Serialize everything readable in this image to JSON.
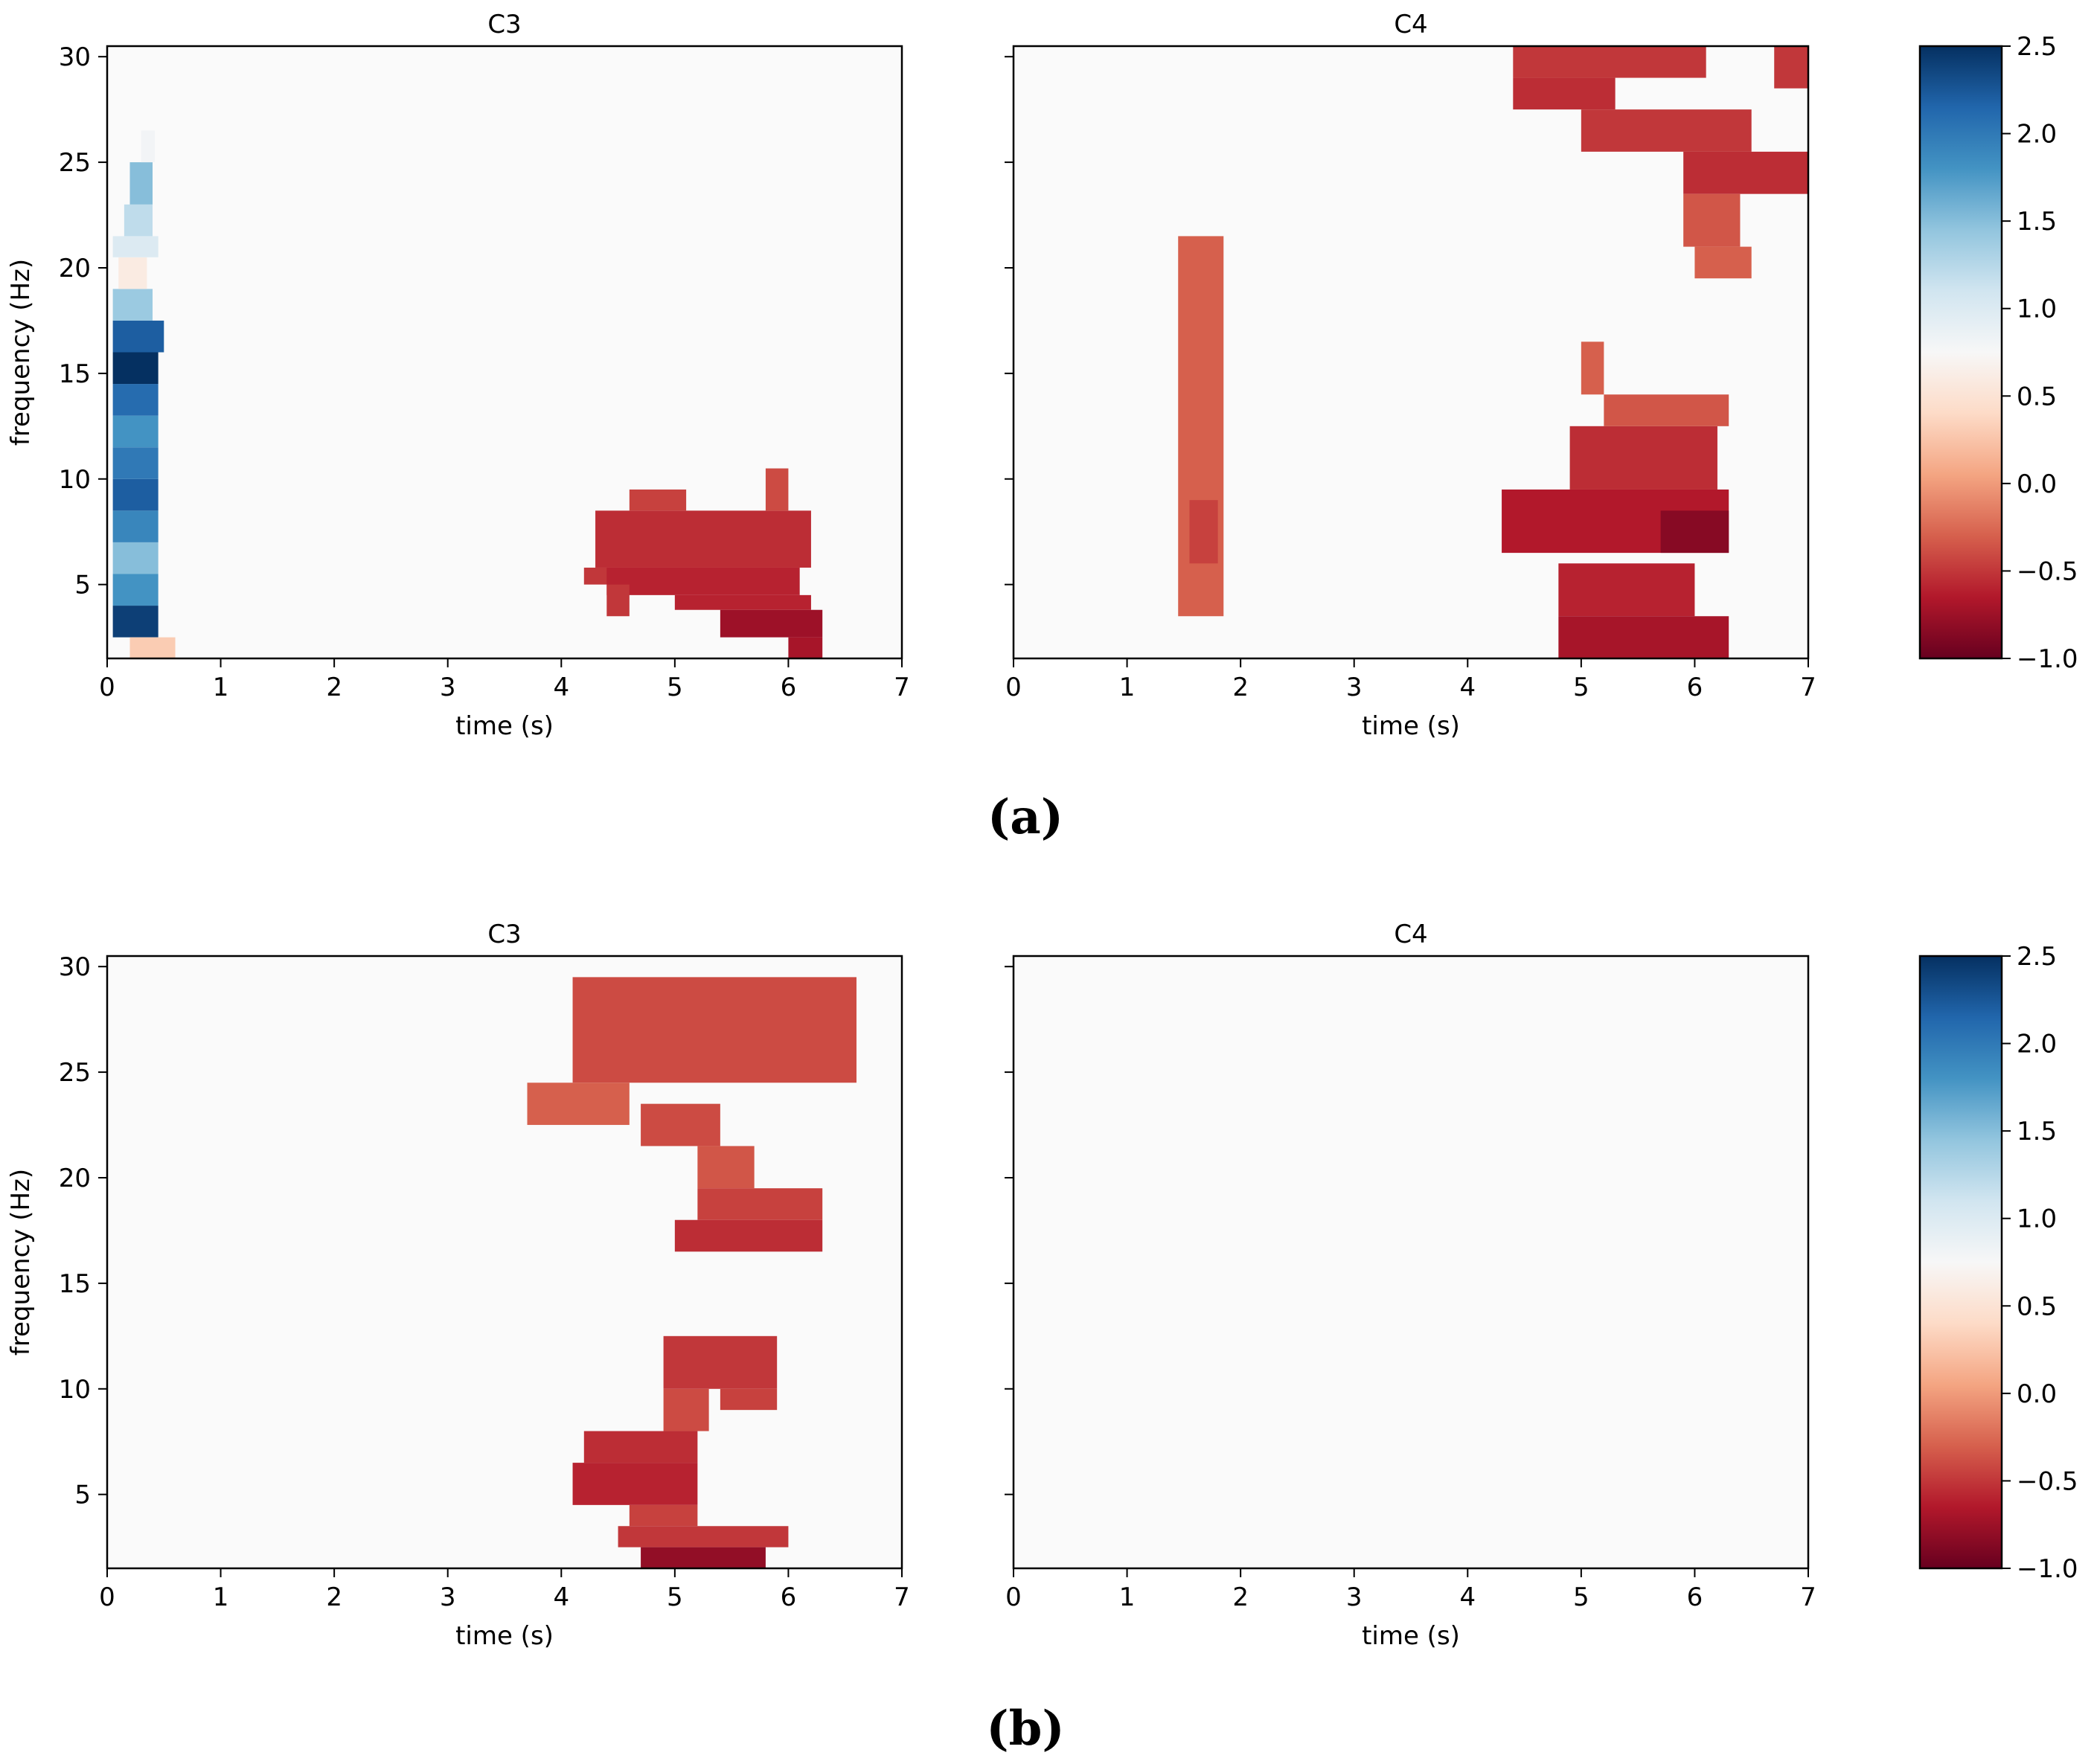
{
  "figure": {
    "panel_labels": [
      "(a)",
      "(b)"
    ],
    "colors": {
      "axis": "#000000",
      "background": "#ffffff"
    }
  },
  "chart_data": [
    {
      "type": "heatmap",
      "panel": "(a)",
      "title": "C3",
      "xlabel": "time (s)",
      "ylabel": "frequency (Hz)",
      "xlim": [
        0,
        7
      ],
      "ylim": [
        1.5,
        30.5
      ],
      "xticks": [
        0,
        1,
        2,
        3,
        4,
        5,
        6,
        7
      ],
      "yticks": [
        5,
        10,
        15,
        20,
        25,
        30
      ],
      "show_ylabel": true,
      "show_yticklabels": true,
      "cells": [
        [
          0.05,
          0.45,
          2.5,
          4,
          2.4
        ],
        [
          0.05,
          0.45,
          4,
          5.5,
          1.8
        ],
        [
          0.05,
          0.45,
          5.5,
          7,
          1.5
        ],
        [
          0.05,
          0.45,
          7,
          8.5,
          1.9
        ],
        [
          0.05,
          0.45,
          8.5,
          10,
          2.2
        ],
        [
          0.05,
          0.45,
          10,
          11.5,
          2.0
        ],
        [
          0.05,
          0.45,
          11.5,
          13,
          1.8
        ],
        [
          0.05,
          0.45,
          13,
          14.5,
          2.1
        ],
        [
          0.05,
          0.45,
          14.5,
          16,
          2.5
        ],
        [
          0.05,
          0.5,
          16,
          17.5,
          2.2
        ],
        [
          0.05,
          0.4,
          17.5,
          19,
          1.4
        ],
        [
          0.1,
          0.35,
          19,
          20.5,
          0.6
        ],
        [
          0.05,
          0.45,
          20.5,
          21.5,
          1.0
        ],
        [
          0.15,
          0.4,
          21.5,
          23,
          1.2
        ],
        [
          0.2,
          0.4,
          23,
          25,
          1.5
        ],
        [
          0.3,
          0.42,
          25,
          26.5,
          0.8
        ],
        [
          0.2,
          0.6,
          1.5,
          2.5,
          0.3
        ],
        [
          4.2,
          4.45,
          5,
          5.8,
          -0.5
        ],
        [
          4.3,
          6.2,
          5.8,
          8.5,
          -0.55
        ],
        [
          4.4,
          6.1,
          4.5,
          5.8,
          -0.6
        ],
        [
          5.0,
          6.2,
          3.8,
          4.5,
          -0.6
        ],
        [
          5.4,
          6.3,
          2.5,
          3.8,
          -0.75
        ],
        [
          6.0,
          6.3,
          1.5,
          2.5,
          -0.7
        ],
        [
          4.6,
          5.1,
          8.5,
          9.5,
          -0.45
        ],
        [
          5.8,
          6.0,
          8.5,
          10.5,
          -0.4
        ],
        [
          4.4,
          4.6,
          3.5,
          5,
          -0.5
        ]
      ]
    },
    {
      "type": "heatmap",
      "panel": "(a)",
      "title": "C4",
      "xlabel": "time (s)",
      "ylabel": "",
      "xlim": [
        0,
        7
      ],
      "ylim": [
        1.5,
        30.5
      ],
      "xticks": [
        0,
        1,
        2,
        3,
        4,
        5,
        6,
        7
      ],
      "yticks": [
        5,
        10,
        15,
        20,
        25,
        30
      ],
      "show_ylabel": false,
      "show_yticklabels": false,
      "cells": [
        [
          1.45,
          1.85,
          3.5,
          21.5,
          -0.3
        ],
        [
          1.55,
          1.8,
          6,
          9,
          -0.45
        ],
        [
          4.3,
          6.3,
          6.5,
          9.5,
          -0.65
        ],
        [
          4.9,
          6.2,
          9.5,
          12.5,
          -0.55
        ],
        [
          4.8,
          6.0,
          3.5,
          6,
          -0.6
        ],
        [
          4.8,
          6.3,
          1.5,
          3.5,
          -0.7
        ],
        [
          5.2,
          6.3,
          12.5,
          14,
          -0.35
        ],
        [
          5.0,
          5.2,
          14,
          16.5,
          -0.3
        ],
        [
          4.4,
          6.1,
          29,
          31,
          -0.5
        ],
        [
          4.4,
          5.3,
          27.5,
          29,
          -0.55
        ],
        [
          5.0,
          6.5,
          25.5,
          27.5,
          -0.5
        ],
        [
          5.9,
          7.0,
          23.5,
          25.5,
          -0.55
        ],
        [
          5.9,
          6.4,
          21,
          23.5,
          -0.35
        ],
        [
          6.0,
          6.5,
          19.5,
          21,
          -0.3
        ],
        [
          6.7,
          7.0,
          28.5,
          30.5,
          -0.5
        ],
        [
          5.7,
          6.3,
          6.5,
          8.5,
          -0.85
        ]
      ]
    },
    {
      "type": "heatmap",
      "panel": "(b)",
      "title": "C3",
      "xlabel": "time (s)",
      "ylabel": "frequency (Hz)",
      "xlim": [
        0,
        7
      ],
      "ylim": [
        1.5,
        30.5
      ],
      "xticks": [
        0,
        1,
        2,
        3,
        4,
        5,
        6,
        7
      ],
      "yticks": [
        5,
        10,
        15,
        20,
        25,
        30
      ],
      "show_ylabel": true,
      "show_yticklabels": true,
      "cells": [
        [
          4.1,
          6.6,
          24.5,
          29.5,
          -0.4
        ],
        [
          3.7,
          4.6,
          22.5,
          24.5,
          -0.3
        ],
        [
          4.7,
          5.4,
          21.5,
          23.5,
          -0.4
        ],
        [
          5.2,
          5.7,
          19.5,
          21.5,
          -0.35
        ],
        [
          5.2,
          6.3,
          18,
          19.5,
          -0.45
        ],
        [
          5.0,
          6.3,
          16.5,
          18,
          -0.55
        ],
        [
          4.9,
          5.9,
          10,
          12.5,
          -0.5
        ],
        [
          5.4,
          5.9,
          9,
          10,
          -0.45
        ],
        [
          4.2,
          5.2,
          6.5,
          8,
          -0.55
        ],
        [
          4.1,
          5.2,
          4.5,
          6.5,
          -0.6
        ],
        [
          4.6,
          5.2,
          3.5,
          4.5,
          -0.45
        ],
        [
          4.5,
          6.0,
          2.5,
          3.5,
          -0.5
        ],
        [
          4.7,
          5.8,
          1.5,
          2.5,
          -0.8
        ],
        [
          4.9,
          5.3,
          8,
          10,
          -0.4
        ]
      ]
    },
    {
      "type": "heatmap",
      "panel": "(b)",
      "title": "C4",
      "xlabel": "time (s)",
      "ylabel": "",
      "xlim": [
        0,
        7
      ],
      "ylim": [
        1.5,
        30.5
      ],
      "xticks": [
        0,
        1,
        2,
        3,
        4,
        5,
        6,
        7
      ],
      "yticks": [
        5,
        10,
        15,
        20,
        25,
        30
      ],
      "show_ylabel": false,
      "show_yticklabels": false,
      "cells": []
    }
  ],
  "colorbars": [
    {
      "panel": "(a)",
      "vmin": -1.0,
      "vmax": 2.5,
      "ticks": [
        -1.0,
        -0.5,
        0.0,
        0.5,
        1.0,
        1.5,
        2.0,
        2.5
      ],
      "tick_labels": [
        "−1.0",
        "−0.5",
        "0.0",
        "0.5",
        "1.0",
        "1.5",
        "2.0",
        "2.5"
      ],
      "colormap": [
        "#67001f",
        "#b2182b",
        "#d6604d",
        "#f4a582",
        "#fddbc7",
        "#f7f7f7",
        "#d1e5f0",
        "#92c5de",
        "#4393c3",
        "#2166ac",
        "#053061"
      ]
    },
    {
      "panel": "(b)",
      "vmin": -1.0,
      "vmax": 2.5,
      "ticks": [
        -1.0,
        -0.5,
        0.0,
        0.5,
        1.0,
        1.5,
        2.0,
        2.5
      ],
      "tick_labels": [
        "−1.0",
        "−0.5",
        "0.0",
        "0.5",
        "1.0",
        "1.5",
        "2.0",
        "2.5"
      ],
      "colormap": [
        "#67001f",
        "#b2182b",
        "#d6604d",
        "#f4a582",
        "#fddbc7",
        "#f7f7f7",
        "#d1e5f0",
        "#92c5de",
        "#4393c3",
        "#2166ac",
        "#053061"
      ]
    }
  ]
}
